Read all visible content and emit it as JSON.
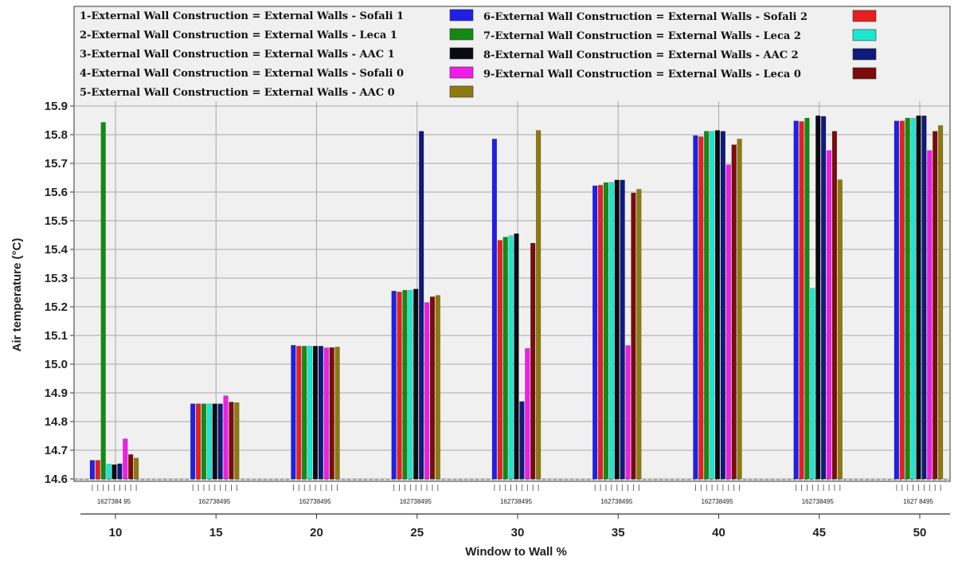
{
  "chart_data": {
    "type": "bar",
    "xlabel": "Window to Wall %",
    "ylabel": "Air temperature (°C)",
    "ylim": [
      14.6,
      15.9
    ],
    "yticks": [
      "14.6",
      "14.7",
      "14.8",
      "14.9",
      "15.0",
      "15.1",
      "15.2",
      "15.3",
      "15.4",
      "15.5",
      "15.6",
      "15.7",
      "15.8",
      "15.9"
    ],
    "categories": [
      "10",
      "15",
      "20",
      "25",
      "30",
      "35",
      "40",
      "45",
      "50"
    ],
    "bar_order": [
      "1",
      "6",
      "2",
      "7",
      "3",
      "8",
      "4",
      "9",
      "5"
    ],
    "bar_labels": [
      "1627384 95",
      "162738495",
      "162738495",
      "162738495",
      "162738495",
      "162738495",
      "162738495",
      "162738495",
      "1627  8495"
    ],
    "grid": true,
    "legend_position": "top",
    "series": [
      {
        "id": "1",
        "name": "1-External Wall Construction = External Walls - Sofali 1",
        "color": "#1f1fe6",
        "values": [
          14.665,
          14.862,
          15.066,
          15.255,
          15.785,
          15.622,
          15.797,
          15.848,
          15.848
        ]
      },
      {
        "id": "6",
        "name": "6-External Wall Construction = External Walls - Sofali 2",
        "color": "#e81f1f",
        "values": [
          14.665,
          14.862,
          15.063,
          15.252,
          15.432,
          15.624,
          15.793,
          15.846,
          15.848
        ]
      },
      {
        "id": "2",
        "name": "2-External Wall Construction = External Walls - Leca 1",
        "color": "#138a13",
        "values": [
          15.843,
          14.862,
          15.063,
          15.258,
          15.443,
          15.633,
          15.812,
          15.858,
          15.858
        ]
      },
      {
        "id": "7",
        "name": "7-External Wall Construction = External Walls - Leca 2",
        "color": "#19e8d0",
        "values": [
          14.652,
          14.862,
          15.063,
          15.258,
          15.448,
          15.634,
          15.812,
          15.265,
          15.858
        ]
      },
      {
        "id": "3",
        "name": "3-External Wall Construction = External Walls - AAC 1",
        "color": "#0a0a12",
        "values": [
          14.65,
          14.862,
          15.063,
          15.262,
          15.455,
          15.642,
          15.815,
          15.866,
          15.866
        ]
      },
      {
        "id": "8",
        "name": "8-External Wall Construction = External Walls - AAC 2",
        "color": "#0f1a7a",
        "values": [
          14.653,
          14.862,
          15.063,
          15.812,
          14.87,
          15.642,
          15.812,
          15.864,
          15.866
        ]
      },
      {
        "id": "4",
        "name": "4-External Wall Construction = External Walls - Sofali 0",
        "color": "#ee1ee6",
        "values": [
          14.74,
          14.89,
          15.057,
          15.215,
          15.055,
          15.065,
          15.695,
          15.745,
          15.745
        ]
      },
      {
        "id": "9",
        "name": "9-External Wall Construction = External Walls - Leca 0",
        "color": "#7a0c0c",
        "values": [
          14.685,
          14.868,
          15.058,
          15.235,
          15.422,
          15.597,
          15.765,
          15.812,
          15.812
        ]
      },
      {
        "id": "5",
        "name": "5-External Wall Construction = External Walls - AAC 0",
        "color": "#8c7a10",
        "values": [
          14.673,
          14.866,
          15.06,
          15.24,
          15.815,
          15.61,
          15.785,
          15.643,
          15.832
        ]
      }
    ]
  },
  "legend": {
    "left": [
      {
        "id": "1",
        "label": "1-External Wall Construction = External Walls - Sofali 1",
        "color": "#1f1fe6"
      },
      {
        "id": "2",
        "label": "2-External Wall Construction = External Walls - Leca 1",
        "color": "#138a13"
      },
      {
        "id": "3",
        "label": "3-External Wall Construction = External Walls - AAC 1",
        "color": "#0a0a12"
      },
      {
        "id": "4",
        "label": "4-External Wall Construction = External Walls - Sofali 0",
        "color": "#ee1ee6"
      },
      {
        "id": "5",
        "label": "5-External Wall Construction = External Walls - AAC 0",
        "color": "#8c7a10"
      }
    ],
    "right": [
      {
        "id": "6",
        "label": "6-External Wall Construction = External Walls - Sofali 2",
        "color": "#e81f1f"
      },
      {
        "id": "7",
        "label": "7-External Wall Construction = External Walls - Leca 2",
        "color": "#19e8d0"
      },
      {
        "id": "8",
        "label": "8-External Wall Construction = External Walls - AAC 2",
        "color": "#0f1a7a"
      },
      {
        "id": "9",
        "label": "9-External Wall Construction = External Walls - Leca 0",
        "color": "#7a0c0c"
      }
    ]
  },
  "colors": {
    "plot_background": "#f0f0f0",
    "grid": "#a9a9a9",
    "frame": "#555555"
  }
}
